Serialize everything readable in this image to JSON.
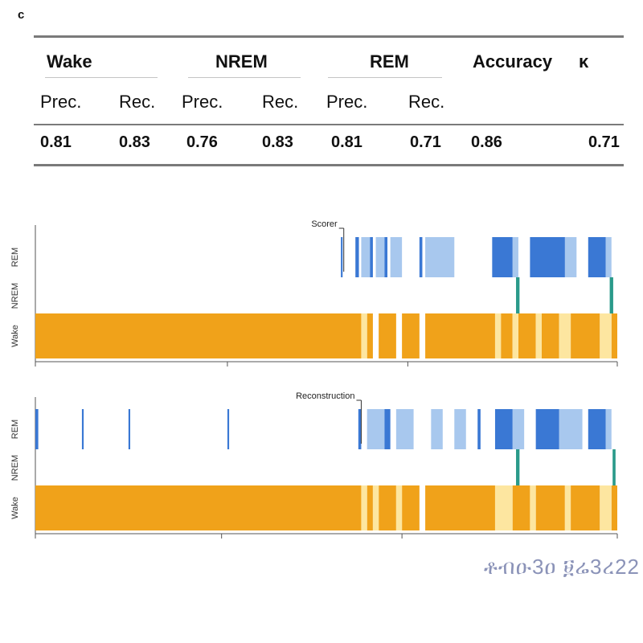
{
  "panel_label": "c",
  "metrics_table": {
    "groups": [
      "Wake",
      "NREM",
      "REM",
      "Accuracy",
      "κ"
    ],
    "subheaders": [
      "Prec.",
      "Rec.",
      "Prec.",
      "Rec.",
      "Prec.",
      "Rec."
    ],
    "values": [
      "0.81",
      "0.83",
      "0.76",
      "0.83",
      "0.81",
      "0.71",
      "0.86",
      "0.71"
    ]
  },
  "chart_data": [
    {
      "type": "hypnogram",
      "annotation": "Scorer",
      "xlim": [
        0,
        1
      ],
      "x_ticks": [
        0,
        0.33,
        0.64,
        1
      ],
      "states": [
        "REM",
        "NREM",
        "Wake"
      ],
      "colors": {
        "wake": "#f0a21a",
        "wake_light": "#fde6a0",
        "nrem": "#3a78d4",
        "nrem_light": "#a8c8ee",
        "rem": "#2a9a8a"
      },
      "wake_segments": [
        [
          0,
          0.56
        ],
        [
          0.57,
          0.58
        ],
        [
          0.59,
          0.62
        ],
        [
          0.63,
          0.66
        ],
        [
          0.67,
          0.79
        ],
        [
          0.8,
          0.82
        ],
        [
          0.83,
          0.86
        ],
        [
          0.87,
          0.9
        ],
        [
          0.92,
          0.97
        ],
        [
          0.99,
          1.0
        ]
      ],
      "wake_light_segments": [
        [
          0.56,
          0.57
        ],
        [
          0.79,
          0.8
        ],
        [
          0.82,
          0.83
        ],
        [
          0.86,
          0.87
        ],
        [
          0.9,
          0.92
        ],
        [
          0.97,
          0.99
        ]
      ],
      "nrem_segments": [
        [
          0.525,
          0.528
        ],
        [
          0.55,
          0.556
        ],
        [
          0.575,
          0.58
        ],
        [
          0.6,
          0.605
        ],
        [
          0.66,
          0.665
        ],
        [
          0.785,
          0.82
        ],
        [
          0.85,
          0.91
        ],
        [
          0.95,
          0.98
        ]
      ],
      "nrem_light_segments": [
        [
          0.56,
          0.575
        ],
        [
          0.585,
          0.6
        ],
        [
          0.61,
          0.63
        ],
        [
          0.67,
          0.72
        ],
        [
          0.82,
          0.83
        ],
        [
          0.91,
          0.93
        ],
        [
          0.98,
          0.99
        ]
      ],
      "rem_segments": [
        [
          0.826,
          0.832
        ],
        [
          0.987,
          0.993
        ]
      ]
    },
    {
      "type": "hypnogram",
      "annotation": "Reconstruction",
      "xlim": [
        0,
        1
      ],
      "x_ticks": [
        0,
        0.32,
        0.63,
        1
      ],
      "states": [
        "REM",
        "NREM",
        "Wake"
      ],
      "colors": {
        "wake": "#f0a21a",
        "wake_light": "#fde6a0",
        "nrem": "#3a78d4",
        "nrem_light": "#a8c8ee",
        "rem": "#2a9a8a"
      },
      "wake_segments": [
        [
          0,
          0.56
        ],
        [
          0.57,
          0.58
        ],
        [
          0.59,
          0.62
        ],
        [
          0.63,
          0.66
        ],
        [
          0.67,
          0.79
        ],
        [
          0.82,
          0.85
        ],
        [
          0.86,
          0.91
        ],
        [
          0.92,
          0.97
        ],
        [
          0.99,
          1.0
        ]
      ],
      "wake_light_segments": [
        [
          0.56,
          0.57
        ],
        [
          0.58,
          0.59
        ],
        [
          0.62,
          0.63
        ],
        [
          0.79,
          0.82
        ],
        [
          0.85,
          0.86
        ],
        [
          0.91,
          0.92
        ],
        [
          0.97,
          0.99
        ]
      ],
      "nrem_segments": [
        [
          0.0,
          0.005
        ],
        [
          0.08,
          0.083
        ],
        [
          0.16,
          0.163
        ],
        [
          0.33,
          0.333
        ],
        [
          0.555,
          0.56
        ],
        [
          0.6,
          0.61
        ],
        [
          0.76,
          0.765
        ],
        [
          0.79,
          0.82
        ],
        [
          0.86,
          0.9
        ],
        [
          0.95,
          0.98
        ]
      ],
      "nrem_light_segments": [
        [
          0.57,
          0.6
        ],
        [
          0.62,
          0.65
        ],
        [
          0.68,
          0.7
        ],
        [
          0.72,
          0.74
        ],
        [
          0.82,
          0.84
        ],
        [
          0.9,
          0.94
        ],
        [
          0.98,
          0.99
        ]
      ],
      "rem_segments": [
        [
          0.826,
          0.832
        ],
        [
          0.992,
          0.997
        ]
      ]
    }
  ],
  "watermark": "ቶብዑ3ዐ ፱ሬ3ረ22"
}
